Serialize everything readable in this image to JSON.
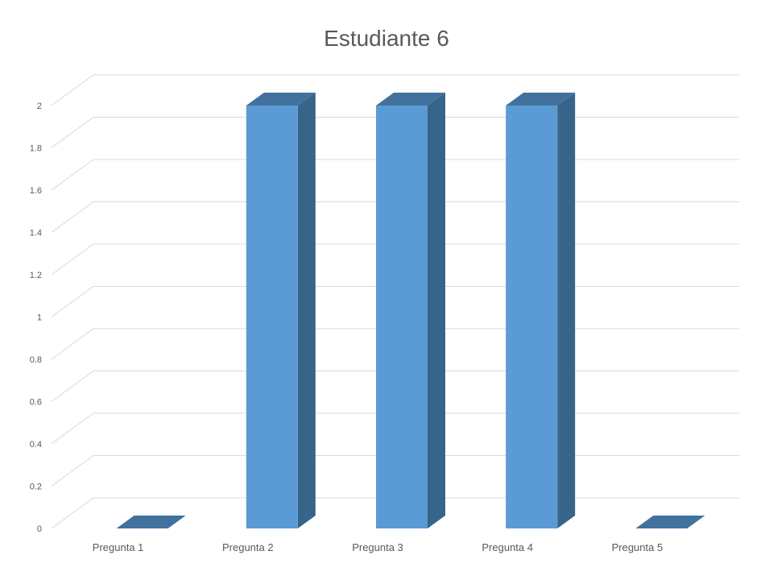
{
  "chart_data": {
    "type": "bar",
    "title": "Estudiante 6",
    "categories": [
      "Pregunta 1",
      "Pregunta 2",
      "Pregunta 3",
      "Pregunta 4",
      "Pregunta 5"
    ],
    "values": [
      0,
      2,
      2,
      2,
      0
    ],
    "ylim": [
      0,
      2
    ],
    "yticks": [
      "0",
      "0.2",
      "0.4",
      "0.6",
      "0.8",
      "1",
      "1.2",
      "1.4",
      "1.6",
      "1.8",
      "2"
    ],
    "xlabel": "",
    "ylabel": "",
    "grid": true,
    "style": "3d-column",
    "colors": {
      "front": "#5B9BD5",
      "side": "#376589",
      "top": "#41719C",
      "grid": "#D9D9D9",
      "text": "#595959"
    }
  }
}
